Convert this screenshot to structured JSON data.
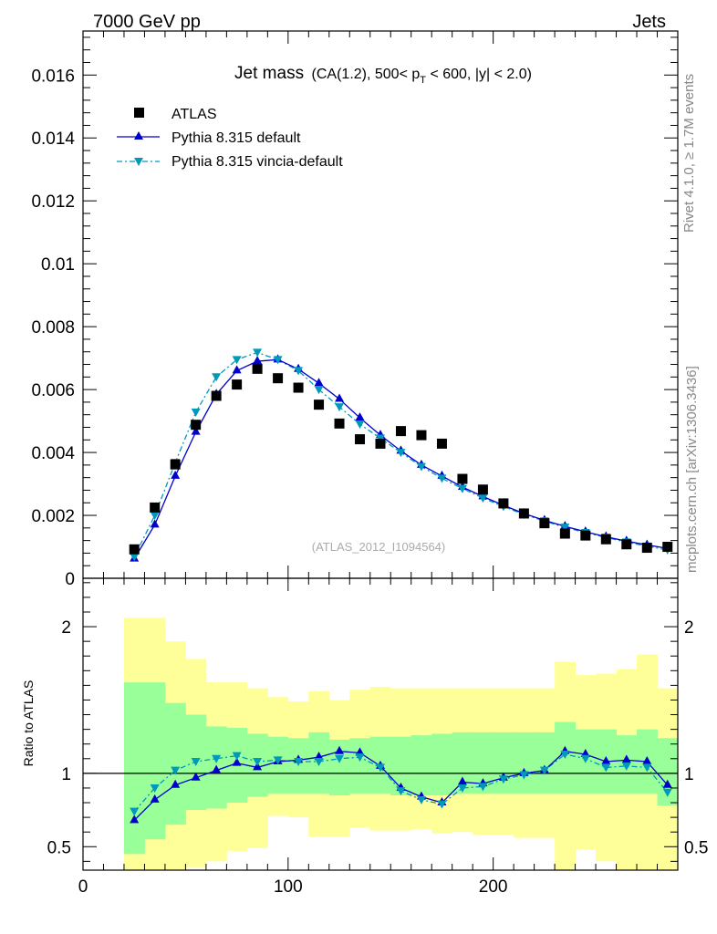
{
  "header": {
    "left": "7000 GeV pp",
    "right": "Jets"
  },
  "side": {
    "rivet": "Rivet 4.1.0, ≥ 1.7M events",
    "mcplots": "mcplots.cern.ch [arXiv:1306.3436]"
  },
  "title": {
    "main": "Jet mass",
    "detail_a": "(CA(1.2), 500< p",
    "detail_sub": "T",
    "detail_b": " < 600, |y| < 2.0)"
  },
  "watermark": "(ATLAS_2012_I1094564)",
  "ratio_label": "Ratio to ATLAS",
  "legend": [
    {
      "label": "ATLAS"
    },
    {
      "label": "Pythia 8.315 default"
    },
    {
      "label": "Pythia 8.315 vincia-default"
    }
  ],
  "colors": {
    "data": "#000000",
    "default": "#0000cc",
    "vincia": "#0099bb",
    "band_inner": "#99ff99",
    "band_outer": "#ffff99"
  },
  "chart_data": {
    "type": "scatter",
    "xlim": [
      0,
      290
    ],
    "ylim_main": [
      0,
      0.0174
    ],
    "ylim_ratio": [
      0.34,
      2.33
    ],
    "yticks_main": [
      {
        "v": 0,
        "label": "0"
      },
      {
        "v": 0.002,
        "label": "0.002"
      },
      {
        "v": 0.004,
        "label": "0.004"
      },
      {
        "v": 0.006,
        "label": "0.006"
      },
      {
        "v": 0.008,
        "label": "0.008"
      },
      {
        "v": 0.01,
        "label": "0.01"
      },
      {
        "v": 0.012,
        "label": "0.012"
      },
      {
        "v": 0.014,
        "label": "0.014"
      },
      {
        "v": 0.016,
        "label": "0.016"
      }
    ],
    "yticks_ratio": [
      {
        "v": 0.5,
        "label": "0.5"
      },
      {
        "v": 1,
        "label": "1"
      },
      {
        "v": 2,
        "label": "2"
      }
    ],
    "xticks": [
      {
        "v": 0,
        "label": "0"
      },
      {
        "v": 100,
        "label": "100"
      },
      {
        "v": 200,
        "label": "200"
      }
    ],
    "x": [
      25,
      35,
      45,
      55,
      65,
      75,
      85,
      95,
      105,
      115,
      125,
      135,
      145,
      155,
      165,
      175,
      185,
      195,
      205,
      215,
      225,
      235,
      245,
      255,
      265,
      275,
      285
    ],
    "series": [
      {
        "name": "ATLAS",
        "values": [
          0.00092,
          0.00225,
          0.00362,
          0.00488,
          0.0058,
          0.00616,
          0.00666,
          0.00636,
          0.00606,
          0.00552,
          0.00492,
          0.00442,
          0.00428,
          0.00468,
          0.00455,
          0.00428,
          0.00316,
          0.00282,
          0.00238,
          0.00206,
          0.00175,
          0.00142,
          0.00136,
          0.00124,
          0.00108,
          0.00097,
          0.001
        ]
      },
      {
        "name": "Pythia 8.315 default",
        "values": [
          0.00062,
          0.0017,
          0.00325,
          0.00465,
          0.00585,
          0.0066,
          0.0069,
          0.00695,
          0.00665,
          0.0062,
          0.0057,
          0.0051,
          0.00455,
          0.00405,
          0.0036,
          0.00325,
          0.0029,
          0.0026,
          0.00232,
          0.00206,
          0.00184,
          0.00165,
          0.00148,
          0.00132,
          0.00118,
          0.00106,
          0.00095
        ]
      },
      {
        "name": "Pythia 8.315 vincia-default",
        "values": [
          0.00068,
          0.002,
          0.00368,
          0.00528,
          0.0064,
          0.00695,
          0.00718,
          0.00695,
          0.0066,
          0.006,
          0.00545,
          0.0049,
          0.00445,
          0.004,
          0.00355,
          0.00318,
          0.00285,
          0.00255,
          0.00228,
          0.00203,
          0.00182,
          0.00162,
          0.00145,
          0.0013,
          0.00115,
          0.00102,
          0.0009
        ]
      }
    ],
    "ratio": {
      "default": [
        0.68,
        0.82,
        0.92,
        0.97,
        1.02,
        1.07,
        1.04,
        1.08,
        1.09,
        1.11,
        1.15,
        1.14,
        1.05,
        0.9,
        0.84,
        0.8,
        0.94,
        0.93,
        0.97,
        1.0,
        1.02,
        1.15,
        1.13,
        1.08,
        1.09,
        1.08,
        0.92
      ]
    },
    "ratio_vincia": [
      0.74,
      0.9,
      1.02,
      1.08,
      1.1,
      1.12,
      1.08,
      1.09,
      1.08,
      1.08,
      1.1,
      1.11,
      1.04,
      0.88,
      0.82,
      0.79,
      0.9,
      0.91,
      0.96,
      0.99,
      1.02,
      1.13,
      1.1,
      1.04,
      1.05,
      1.04,
      0.87
    ],
    "band_inner": {
      "lo": [
        0.45,
        0.55,
        0.65,
        0.75,
        0.76,
        0.8,
        0.84,
        0.86,
        0.86,
        0.86,
        0.85,
        0.86,
        0.86,
        0.85,
        0.85,
        0.85,
        0.86,
        0.86,
        0.86,
        0.86,
        0.86,
        0.86,
        0.86,
        0.86,
        0.86,
        0.86,
        0.78
      ],
      "hi": [
        1.62,
        1.62,
        1.48,
        1.4,
        1.32,
        1.31,
        1.27,
        1.25,
        1.24,
        1.28,
        1.23,
        1.24,
        1.25,
        1.25,
        1.26,
        1.27,
        1.28,
        1.28,
        1.28,
        1.28,
        1.28,
        1.35,
        1.3,
        1.3,
        1.26,
        1.3,
        1.24
      ]
    },
    "band_outer": {
      "lo": [
        0.34,
        0.34,
        0.34,
        0.36,
        0.4,
        0.47,
        0.49,
        0.71,
        0.7,
        0.57,
        0.57,
        0.63,
        0.61,
        0.61,
        0.62,
        0.59,
        0.6,
        0.58,
        0.58,
        0.56,
        0.56,
        0.34,
        0.48,
        0.4,
        0.34,
        0.34,
        0.34
      ],
      "hi": [
        2.06,
        2.06,
        1.9,
        1.78,
        1.62,
        1.62,
        1.58,
        1.52,
        1.49,
        1.56,
        1.5,
        1.57,
        1.59,
        1.58,
        1.58,
        1.58,
        1.58,
        1.58,
        1.58,
        1.58,
        1.58,
        1.76,
        1.67,
        1.68,
        1.71,
        1.81,
        1.58
      ]
    }
  }
}
